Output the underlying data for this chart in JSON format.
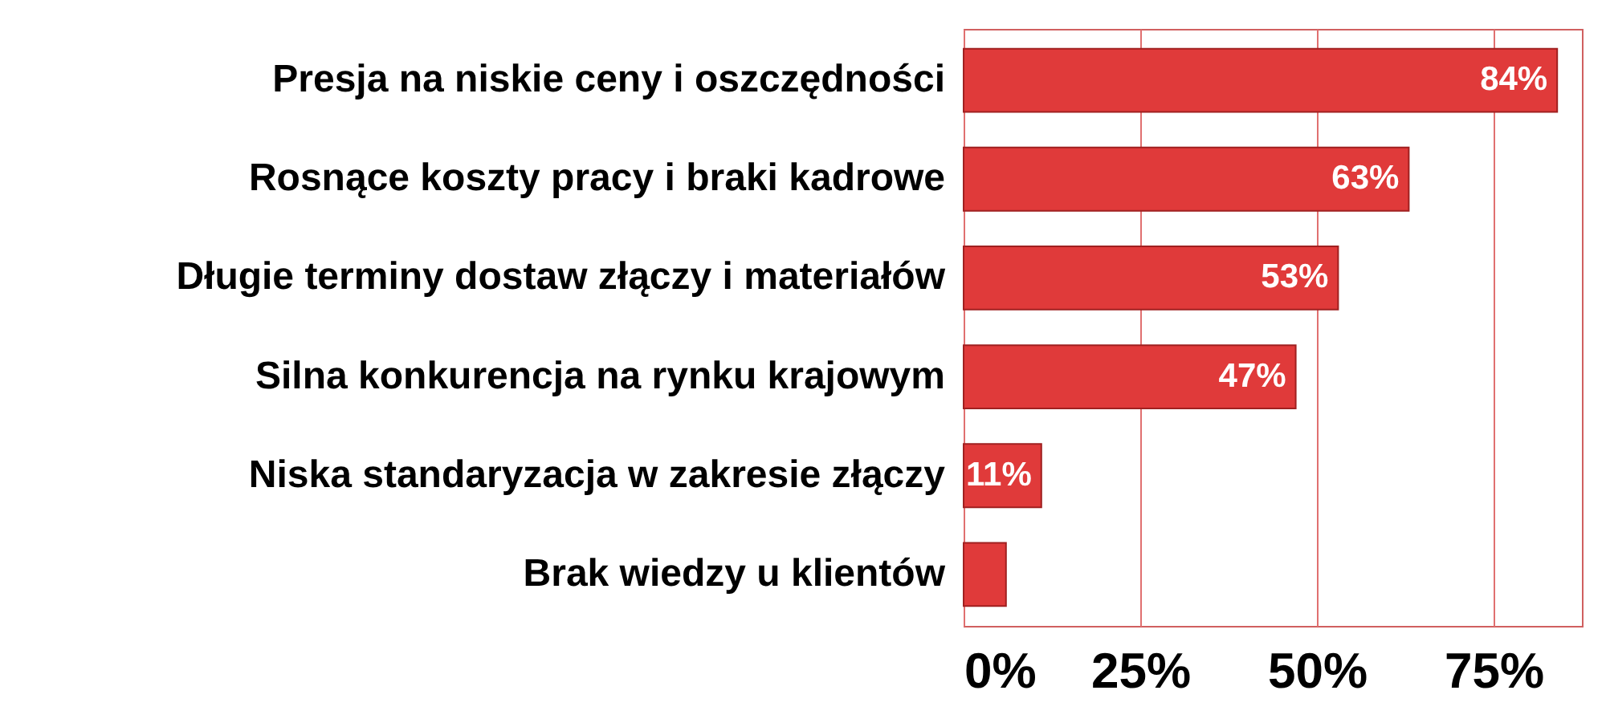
{
  "chart_data": {
    "type": "bar",
    "orientation": "horizontal",
    "categories": [
      "Presja na niskie ceny i oszczędności",
      "Rosnące koszty pracy i braki kadrowe",
      "Długie terminy dostaw złączy i materiałów",
      "Silna konkurencja na rynku krajowym",
      "Niska standaryzacja w zakresie złączy",
      "Brak wiedzy u klientów"
    ],
    "values": [
      84,
      63,
      53,
      47,
      11,
      6
    ],
    "value_labels": [
      "84%",
      "63%",
      "53%",
      "47%",
      "11%",
      null
    ],
    "color": "#e03a3a",
    "xlim": [
      0,
      87.5
    ],
    "xticks": [
      {
        "value": 0,
        "label": "0%"
      },
      {
        "value": 25,
        "label": "25%"
      },
      {
        "value": 50,
        "label": "50%"
      },
      {
        "value": 75,
        "label": "75%"
      }
    ],
    "grid": "x"
  }
}
